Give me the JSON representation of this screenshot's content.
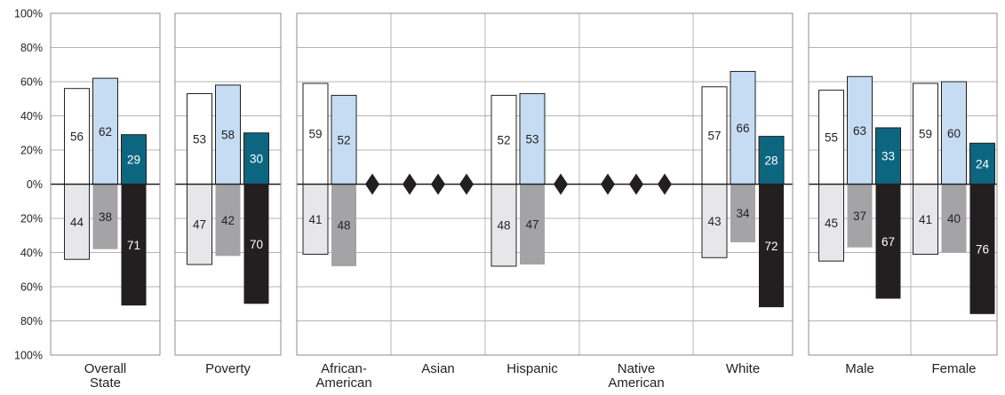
{
  "chart_data": {
    "type": "bar",
    "ylim": [
      -100,
      100
    ],
    "y_ticks": [
      {
        "value": 100,
        "label": "100%"
      },
      {
        "value": 80,
        "label": "80%"
      },
      {
        "value": 60,
        "label": "60%"
      },
      {
        "value": 40,
        "label": "40%"
      },
      {
        "value": 20,
        "label": "20%"
      },
      {
        "value": 0,
        "label": "0%"
      },
      {
        "value": -20,
        "label": "20%"
      },
      {
        "value": -40,
        "label": "40%"
      },
      {
        "value": -60,
        "label": "60%"
      },
      {
        "value": -80,
        "label": "80%"
      },
      {
        "value": -100,
        "label": "100%"
      }
    ],
    "grid": true,
    "legend": "none",
    "colors": {
      "pos": [
        "#ffffff",
        "#c6dcf2",
        "#0d6680"
      ],
      "neg": [
        "#e7e7e9",
        "#a4a4a6",
        "#231f20"
      ],
      "stroke": "#231f20",
      "grid": "#b4b4b4",
      "label_dark_bg": "#ffffff",
      "label_light_bg": "#231f20"
    },
    "categories": [
      {
        "name": "cat-overall-state",
        "label": [
          "Overall",
          "State"
        ],
        "group": 0,
        "missing": false,
        "bars": [
          {
            "pos": 56,
            "neg": 44
          },
          {
            "pos": 62,
            "neg": 38
          },
          {
            "pos": 29,
            "neg": 71
          }
        ]
      },
      {
        "name": "cat-poverty",
        "label": [
          "Poverty"
        ],
        "group": 1,
        "missing": false,
        "bars": [
          {
            "pos": 53,
            "neg": 47
          },
          {
            "pos": 58,
            "neg": 42
          },
          {
            "pos": 30,
            "neg": 70
          }
        ]
      },
      {
        "name": "cat-african-american",
        "label": [
          "African-",
          "American"
        ],
        "group": 2,
        "missing": false,
        "bars": [
          {
            "pos": 59,
            "neg": 41
          },
          {
            "pos": 52,
            "neg": 48
          },
          null
        ]
      },
      {
        "name": "cat-asian",
        "label": [
          "Asian"
        ],
        "group": 2,
        "missing": true,
        "bars": [
          null,
          null,
          null
        ]
      },
      {
        "name": "cat-hispanic",
        "label": [
          "Hispanic"
        ],
        "group": 2,
        "missing": false,
        "bars": [
          {
            "pos": 52,
            "neg": 48
          },
          {
            "pos": 53,
            "neg": 47
          },
          null
        ]
      },
      {
        "name": "cat-native-american",
        "label": [
          "Native",
          "American"
        ],
        "group": 2,
        "missing": true,
        "bars": [
          null,
          null,
          null
        ]
      },
      {
        "name": "cat-white",
        "label": [
          "White"
        ],
        "group": 2,
        "missing": false,
        "bars": [
          {
            "pos": 57,
            "neg": 43
          },
          {
            "pos": 66,
            "neg": 34
          },
          {
            "pos": 28,
            "neg": 72
          }
        ]
      },
      {
        "name": "cat-male",
        "label": [
          "Male"
        ],
        "group": 3,
        "missing": false,
        "bars": [
          {
            "pos": 55,
            "neg": 45
          },
          {
            "pos": 63,
            "neg": 37
          },
          {
            "pos": 33,
            "neg": 67
          }
        ]
      },
      {
        "name": "cat-female",
        "label": [
          "Female"
        ],
        "group": 3,
        "missing": false,
        "bars": [
          {
            "pos": 59,
            "neg": 41
          },
          {
            "pos": 60,
            "neg": 40
          },
          {
            "pos": 24,
            "neg": 76
          }
        ]
      }
    ]
  }
}
